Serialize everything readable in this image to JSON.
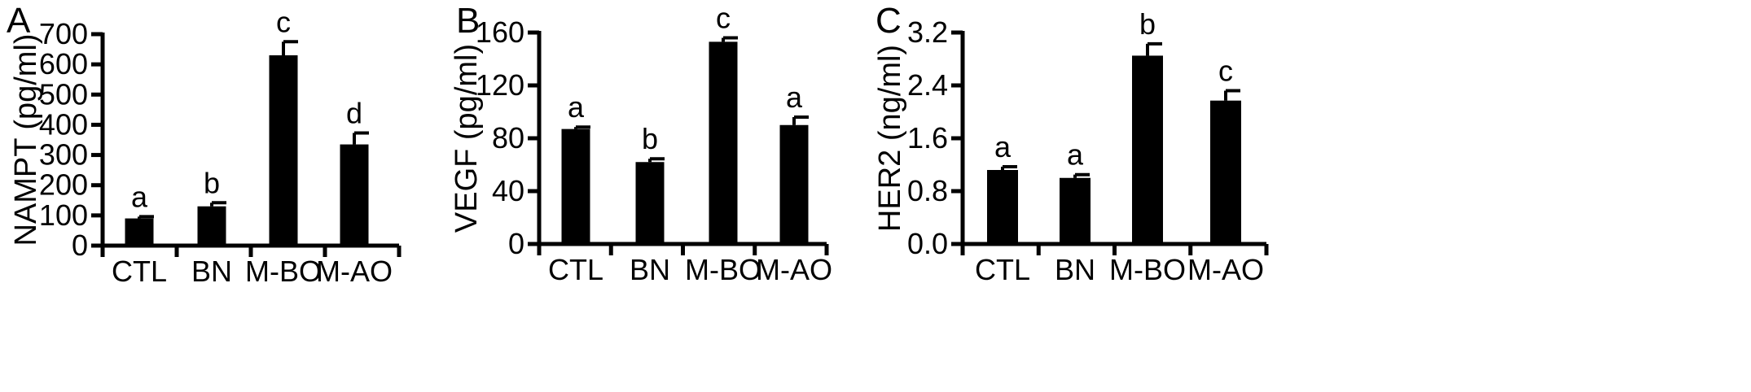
{
  "chart_data": [
    {
      "type": "bar",
      "panel": "A",
      "ylabel": "NAMPT (pg/ml)",
      "categories": [
        "CTL",
        "BN",
        "M-BO",
        "M-AO"
      ],
      "values": [
        90,
        130,
        630,
        335
      ],
      "errors": [
        6,
        12,
        45,
        38
      ],
      "sig_labels": [
        "a",
        "b",
        "c",
        "d"
      ],
      "ylim": [
        0,
        700
      ],
      "yticks": [
        0,
        100,
        200,
        300,
        400,
        500,
        600,
        700
      ],
      "ytick_labels": [
        "0",
        "100",
        "200",
        "300",
        "400",
        "500",
        "600",
        "700"
      ]
    },
    {
      "type": "bar",
      "panel": "B",
      "ylabel": "VEGF (pg/ml)",
      "categories": [
        "CTL",
        "BN",
        "M-BO",
        "M-AO"
      ],
      "values": [
        87,
        62,
        153,
        90
      ],
      "errors": [
        1.5,
        2.5,
        3,
        6
      ],
      "sig_labels": [
        "a",
        "b",
        "c",
        "a"
      ],
      "ylim": [
        0,
        160
      ],
      "yticks": [
        0,
        40,
        80,
        120,
        160
      ],
      "ytick_labels": [
        "0",
        "40",
        "80",
        "120",
        "160"
      ]
    },
    {
      "type": "bar",
      "panel": "C",
      "ylabel": "HER2 (ng/ml)",
      "categories": [
        "CTL",
        "BN",
        "M-BO",
        "M-AO"
      ],
      "values": [
        1.12,
        1.0,
        2.85,
        2.17
      ],
      "errors": [
        0.05,
        0.05,
        0.18,
        0.15
      ],
      "sig_labels": [
        "a",
        "a",
        "b",
        "c"
      ],
      "ylim": [
        0,
        3.2
      ],
      "yticks": [
        0,
        0.8,
        1.6,
        2.4,
        3.2
      ],
      "ytick_labels": [
        "0.0",
        "0.8",
        "1.6",
        "2.4",
        "3.2"
      ]
    }
  ]
}
